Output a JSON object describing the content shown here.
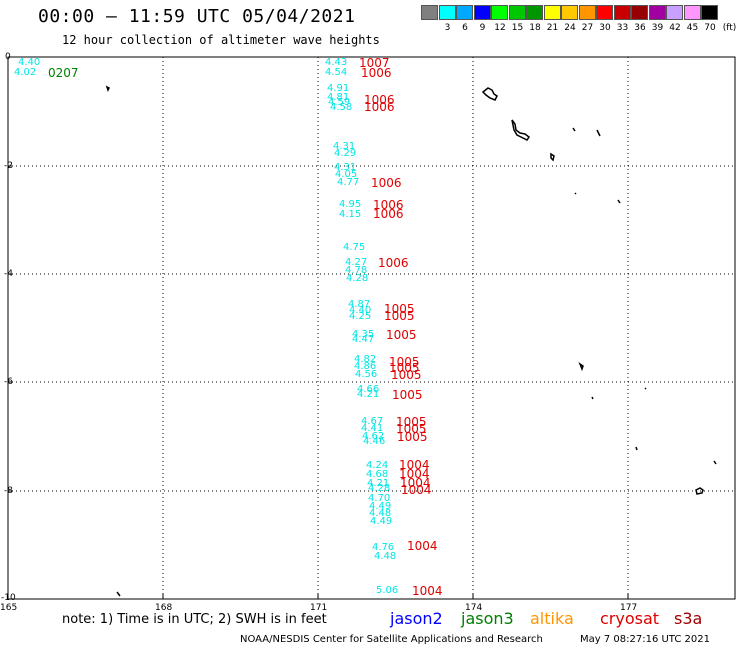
{
  "header": {
    "title": "00:00 – 11:59 UTC 05/04/2021",
    "subtitle": "12 hour collection of altimeter wave heights"
  },
  "colorbar": {
    "cells": [
      {
        "color": "#808080",
        "label": ""
      },
      {
        "color": "#00ffff",
        "label": "3"
      },
      {
        "color": "#00a8ff",
        "label": "6"
      },
      {
        "color": "#0000ff",
        "label": "9"
      },
      {
        "color": "#00ff00",
        "label": "12"
      },
      {
        "color": "#00c800",
        "label": "15"
      },
      {
        "color": "#009600",
        "label": "18"
      },
      {
        "color": "#ffff00",
        "label": "21"
      },
      {
        "color": "#ffc800",
        "label": "24"
      },
      {
        "color": "#ff9600",
        "label": "27"
      },
      {
        "color": "#ff0000",
        "label": "30"
      },
      {
        "color": "#c80000",
        "label": "33"
      },
      {
        "color": "#960000",
        "label": "36"
      },
      {
        "color": "#a000a0",
        "label": "39"
      },
      {
        "color": "#c8a0ff",
        "label": "42"
      },
      {
        "color": "#ff96ff",
        "label": "45"
      },
      {
        "color": "#000000",
        "label": "70"
      }
    ],
    "unit": "(ft)"
  },
  "axes": {
    "lat_ticks": [
      "0",
      "-2",
      "-4",
      "-6",
      "-8",
      "-10"
    ],
    "lon_ticks": [
      "165",
      "168",
      "171",
      "174",
      "177"
    ]
  },
  "track_other": {
    "swh": [
      "4.40",
      "4.02"
    ],
    "time": "0207",
    "color": "#008000"
  },
  "track_main": {
    "swh": [
      "4.43",
      "4.54",
      "4.91",
      "4.81",
      "4.59",
      "4.58",
      "4.31",
      "4.29",
      "4.31",
      "4.05",
      "4.77",
      "4.95",
      "4.15",
      "4.75",
      "4.27",
      "4.78",
      "4.28",
      "4.87",
      "4.40",
      "4.25",
      "4.35",
      "4.47",
      "4.82",
      "4.86",
      "4.56",
      "4.66",
      "4.21",
      "4.67",
      "4.41",
      "4.62",
      "4.46",
      "4.24",
      "4.68",
      "4.21",
      "4.28",
      "4.70",
      "4.49",
      "4.48",
      "4.49",
      "4.76",
      "4.48",
      "5.06"
    ],
    "times": [
      "1007",
      "1006",
      "1006",
      "1006",
      "1006",
      "1006",
      "1006",
      "1006",
      "1005",
      "1005",
      "1005",
      "1005",
      "1005",
      "1005",
      "1005",
      "1005",
      "1005",
      "1005",
      "1004",
      "1004",
      "1004",
      "1004",
      "1004",
      "1004"
    ],
    "swh_color": "#00e5e5",
    "time_color": "#e00000"
  },
  "footer": {
    "note": "note: 1) Time is in UTC; 2) SWH is in feet",
    "satellites": [
      {
        "name": "jason2",
        "color": "#0000ff"
      },
      {
        "name": "jason3",
        "color": "#008000"
      },
      {
        "name": "altika",
        "color": "#ff9600"
      },
      {
        "name": "cryosat",
        "color": "#e00000"
      },
      {
        "name": "s3a",
        "color": "#a00000"
      }
    ],
    "credit": "NOAA/NESDIS Center for Satellite Applications and Research",
    "timestamp": "May  7 08:27:16 UTC 2021"
  }
}
